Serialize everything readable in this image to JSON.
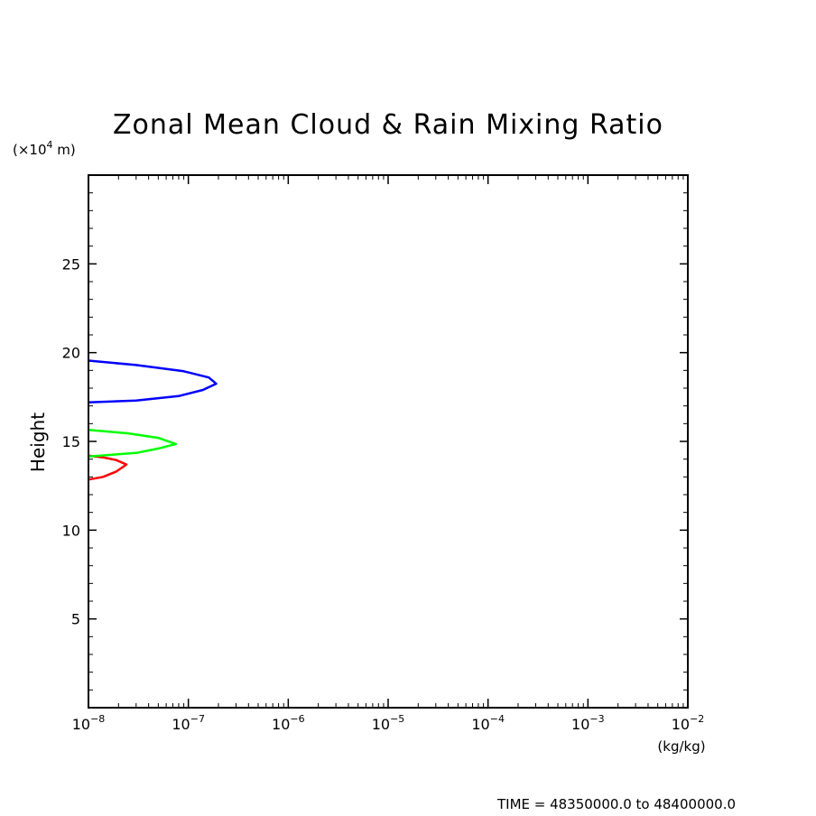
{
  "chart_data": {
    "type": "line",
    "title": "Zonal Mean Cloud & Rain Mixing Ratio",
    "ylabel": "Height",
    "y_unit": {
      "prefix": "(×10",
      "exponent": "4",
      "suffix": " m)"
    },
    "x_unit": "(kg/kg)",
    "x_scale": "log",
    "xlim": [
      1e-08,
      0.01
    ],
    "ylim": [
      0,
      30
    ],
    "x_ticks": [
      {
        "base": "10",
        "exponent": "−8",
        "value": 1e-08
      },
      {
        "base": "10",
        "exponent": "−7",
        "value": 1e-07
      },
      {
        "base": "10",
        "exponent": "−6",
        "value": 1e-06
      },
      {
        "base": "10",
        "exponent": "−5",
        "value": 1e-05
      },
      {
        "base": "10",
        "exponent": "−4",
        "value": 0.0001
      },
      {
        "base": "10",
        "exponent": "−3",
        "value": 0.001
      },
      {
        "base": "10",
        "exponent": "−2",
        "value": 0.01
      }
    ],
    "y_ticks": [
      {
        "label": "5",
        "value": 5
      },
      {
        "label": "10",
        "value": 10
      },
      {
        "label": "15",
        "value": 15
      },
      {
        "label": "20",
        "value": 20
      },
      {
        "label": "25",
        "value": 25
      }
    ],
    "series": [
      {
        "color": "#ff0000",
        "points": [
          [
            1e-08,
            12.85
          ],
          [
            1.4e-08,
            13.0
          ],
          [
            1.9e-08,
            13.3
          ],
          [
            2.4e-08,
            13.7
          ],
          [
            1.9e-08,
            13.95
          ],
          [
            1.4e-08,
            14.1
          ],
          [
            1e-08,
            14.2
          ]
        ]
      },
      {
        "color": "#00ff00",
        "points": [
          [
            1e-08,
            14.15
          ],
          [
            3e-08,
            14.35
          ],
          [
            5e-08,
            14.6
          ],
          [
            7.5e-08,
            14.85
          ],
          [
            5e-08,
            15.2
          ],
          [
            2.5e-08,
            15.45
          ],
          [
            1e-08,
            15.65
          ]
        ]
      },
      {
        "color": "#0000ff",
        "points": [
          [
            1e-08,
            17.2
          ],
          [
            3e-08,
            17.3
          ],
          [
            8e-08,
            17.55
          ],
          [
            1.4e-07,
            17.9
          ],
          [
            1.9e-07,
            18.25
          ],
          [
            1.6e-07,
            18.6
          ],
          [
            9e-08,
            18.95
          ],
          [
            3e-08,
            19.3
          ],
          [
            1e-08,
            19.55
          ]
        ]
      }
    ]
  },
  "footer": "TIME = 48350000.0 to 48400000.0"
}
